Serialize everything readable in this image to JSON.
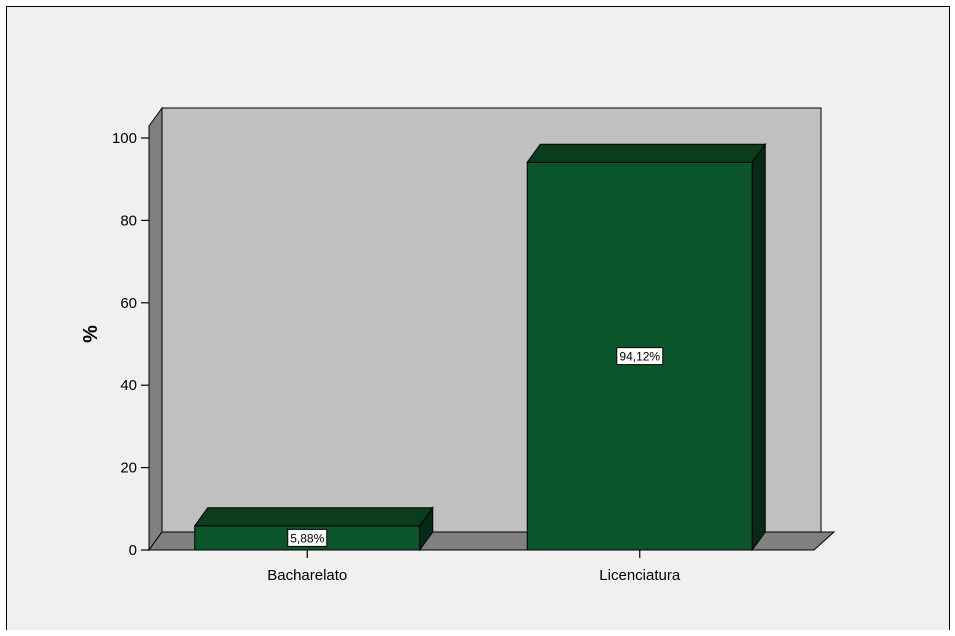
{
  "chart_data": {
    "type": "bar",
    "categories": [
      "Bacharelato",
      "Licenciatura"
    ],
    "values": [
      5.88,
      94.12
    ],
    "data_labels": [
      "5,88%",
      "94,12%"
    ],
    "title": "",
    "xlabel": "",
    "ylabel": "%",
    "ylim": [
      0,
      100
    ],
    "yticks": [
      0,
      20,
      40,
      60,
      80,
      100
    ],
    "ytick_labels": [
      "0",
      "20",
      "40",
      "60",
      "80",
      "100"
    ],
    "grid": false,
    "three_d": true,
    "colors": {
      "bar_front": "#0b552b",
      "bar_top": "#0a3d1e",
      "bar_side": "#062a15",
      "back_wall": "#c0c0c0",
      "side_wall": "#808080",
      "floor": "#808080",
      "label_box": "#ffffff"
    }
  }
}
